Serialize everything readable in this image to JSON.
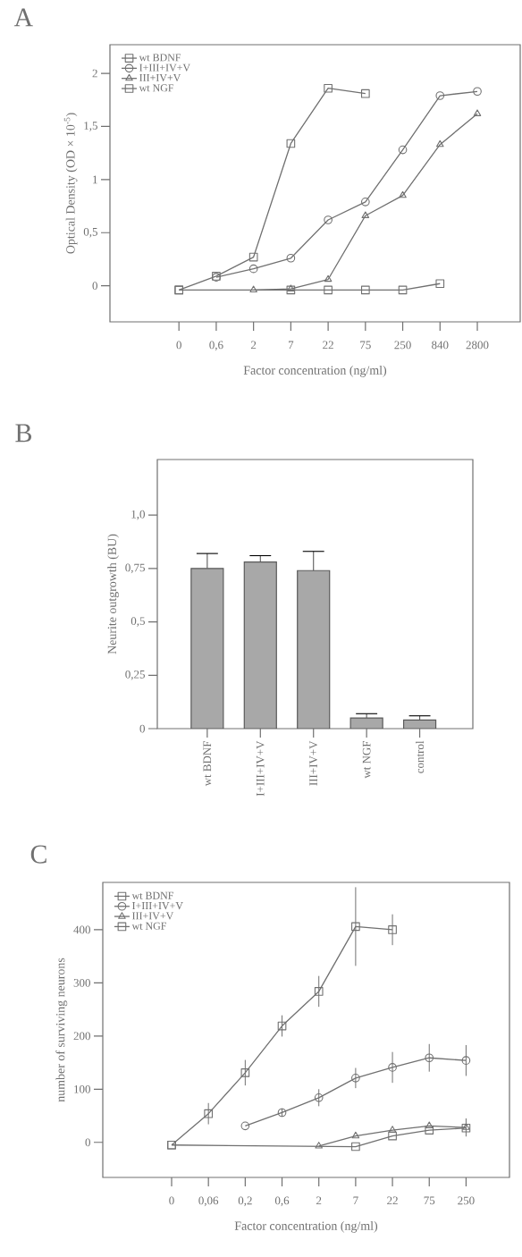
{
  "chart_data": [
    {
      "type": "line",
      "title": "A",
      "xlabel": "Factor concentration (ng/ml)",
      "ylabel": "Optical Density (OD × 10$^{-5}$)",
      "categories": [
        "0",
        "0,6",
        "2",
        "7",
        "22",
        "75",
        "250",
        "840",
        "2800"
      ],
      "series": [
        {
          "name": "wt BDNF",
          "color": "#707070",
          "marker": "square",
          "values": [
            -0.04,
            0.09,
            0.27,
            1.34,
            1.86,
            1.81,
            null,
            null,
            null
          ]
        },
        {
          "name": "I+III+IV+V",
          "color": "#707070",
          "marker": "circle",
          "values": [
            null,
            0.08,
            0.16,
            0.26,
            0.62,
            0.79,
            1.28,
            1.79,
            1.83
          ]
        },
        {
          "name": "III+IV+V",
          "color": "#707070",
          "marker": "triangle",
          "values": [
            null,
            null,
            -0.04,
            -0.03,
            0.06,
            0.66,
            0.85,
            1.33,
            1.62
          ]
        },
        {
          "name": "wt NGF",
          "color": "#707070",
          "marker": "square",
          "values": [
            -0.04,
            null,
            null,
            -0.04,
            -0.04,
            -0.04,
            -0.04,
            0.02,
            null
          ]
        }
      ],
      "ylim": [
        -0.34,
        2.27
      ],
      "yticks": [
        0,
        {
          "value": 0.5,
          "label": "0,5"
        },
        1,
        {
          "value": 1.5,
          "label": "1,5"
        },
        2
      ],
      "legend": "top left"
    },
    {
      "type": "bar",
      "title": "B",
      "ylabel": "Neurite outgrowth (BU)",
      "categories": [
        "wt BDNF",
        "I+III+IV+V",
        "III+IV+V",
        "wt NGF",
        "control"
      ],
      "values": [
        0.75,
        0.78,
        0.74,
        0.05,
        0.04
      ],
      "errors": [
        0.07,
        0.03,
        0.09,
        0.02,
        0.02
      ],
      "color": "#a8a8a8",
      "ylim": [
        0,
        1.26
      ],
      "yticks": [
        0,
        {
          "value": 0.25,
          "label": "0,25"
        },
        {
          "value": 0.5,
          "label": "0,5"
        },
        {
          "value": 0.75,
          "label": "0,75"
        },
        {
          "value": 1,
          "label": "1,0"
        }
      ]
    },
    {
      "type": "line",
      "title": "C",
      "xlabel": "Factor concentration (ng/ml)",
      "ylabel": "number of surviving neurons",
      "categories": [
        "0",
        "0,06",
        "0,2",
        "0,6",
        "2",
        "7",
        "22",
        "75",
        "250"
      ],
      "series": [
        {
          "name": "wt BDNF",
          "color": "#707070",
          "marker": "square",
          "values": [
            -5,
            54,
            131,
            219,
            284,
            406,
            400,
            null,
            null
          ],
          "errors": [
            null,
            20,
            24,
            20,
            29,
            74,
            29,
            null,
            null
          ]
        },
        {
          "name": "I+III+IV+V",
          "color": "#707070",
          "marker": "circle",
          "values": [
            null,
            null,
            31,
            56,
            84,
            121,
            141,
            159,
            154
          ],
          "errors": [
            null,
            null,
            null,
            8,
            16,
            19,
            29,
            26,
            29
          ]
        },
        {
          "name": "III+IV+V",
          "color": "#707070",
          "marker": "triangle",
          "values": [
            null,
            null,
            null,
            null,
            -7,
            12,
            23,
            31,
            28
          ],
          "errors": [
            null,
            null,
            null,
            null,
            null,
            null,
            null,
            null,
            17
          ]
        },
        {
          "name": "wt NGF",
          "color": "#707070",
          "marker": "square",
          "values": [
            -5,
            null,
            null,
            null,
            null,
            -8,
            12,
            23,
            27
          ]
        }
      ],
      "ylim": [
        -66,
        489
      ],
      "yticks": [
        0,
        100,
        200,
        300,
        400
      ],
      "legend": "top left"
    }
  ]
}
